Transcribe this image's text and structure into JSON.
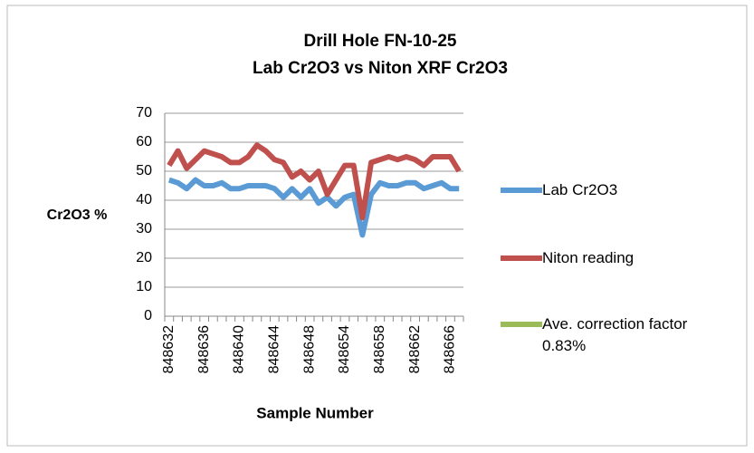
{
  "chart_data": {
    "type": "line",
    "title": "Drill Hole FN-10-25",
    "subtitle": "Lab Cr2O3 vs Niton XRF Cr2O3",
    "x_label": "Sample Number",
    "y_label": "Cr2O3 %",
    "categories": [
      "848632",
      null,
      null,
      null,
      "848636",
      null,
      null,
      null,
      "848640",
      null,
      null,
      null,
      "848644",
      null,
      null,
      null,
      "848648",
      null,
      null,
      null,
      "848654",
      null,
      null,
      null,
      "848658",
      null,
      null,
      null,
      "848662",
      null,
      null,
      null,
      "848666",
      null
    ],
    "series": [
      {
        "name": "Lab Cr2O3",
        "color": "#5b9bd5",
        "values": [
          47,
          46,
          44,
          47,
          45,
          45,
          46,
          44,
          44,
          45,
          45,
          45,
          44,
          41,
          44,
          41,
          44,
          39,
          41,
          38,
          41,
          42,
          28,
          42,
          46,
          45,
          45,
          46,
          46,
          44,
          45,
          46,
          44,
          44
        ]
      },
      {
        "name": "Niton reading",
        "color": "#c0504d",
        "values": [
          52,
          57,
          51,
          54,
          57,
          56,
          55,
          53,
          53,
          55,
          59,
          57,
          54,
          53,
          48,
          50,
          47,
          50,
          42,
          47,
          52,
          52,
          34,
          53,
          54,
          55,
          54,
          55,
          54,
          52,
          55,
          55,
          55,
          50
        ]
      },
      {
        "name": "Ave. correction factor 0.83%",
        "color": "#9bbb59",
        "values": [
          null,
          null,
          null,
          null,
          null,
          null,
          null,
          null,
          null,
          null,
          null,
          null,
          null,
          null,
          null,
          null,
          null,
          null,
          null,
          null,
          null,
          null,
          null,
          null,
          null,
          null,
          null,
          null,
          null,
          null,
          null,
          null,
          null,
          null
        ]
      }
    ],
    "ylim": [
      0,
      70
    ],
    "yticks": [
      0,
      10,
      20,
      30,
      40,
      50,
      60,
      70
    ],
    "grid": true,
    "legend": "right"
  }
}
